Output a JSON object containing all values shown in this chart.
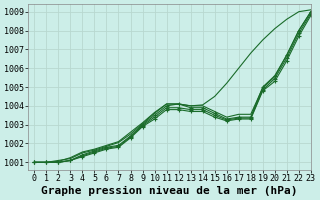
{
  "title": "Graphe pression niveau de la mer (hPa)",
  "background_color": "#cceee8",
  "grid_color": "#b8d8d0",
  "line_color": "#1a6b2a",
  "xlim": [
    -0.5,
    23
  ],
  "ylim": [
    1000.6,
    1009.4
  ],
  "yticks": [
    1001,
    1002,
    1003,
    1004,
    1005,
    1006,
    1007,
    1008,
    1009
  ],
  "xticks": [
    0,
    1,
    2,
    3,
    4,
    5,
    6,
    7,
    8,
    9,
    10,
    11,
    12,
    13,
    14,
    15,
    16,
    17,
    18,
    19,
    20,
    21,
    22,
    23
  ],
  "series": [
    {
      "y": [
        1001.0,
        1001.0,
        1001.0,
        1001.1,
        1001.4,
        1001.6,
        1001.8,
        1001.9,
        1002.4,
        1003.0,
        1003.5,
        1004.0,
        1004.1,
        1003.9,
        1003.9,
        1003.6,
        1003.3,
        1003.4,
        1003.4,
        1005.0,
        1005.6,
        1006.7,
        1008.0,
        1009.0
      ],
      "marker": true
    },
    {
      "y": [
        1001.0,
        1001.0,
        1001.0,
        1001.1,
        1001.3,
        1001.5,
        1001.7,
        1001.8,
        1002.3,
        1002.9,
        1003.3,
        1003.8,
        1003.8,
        1003.7,
        1003.7,
        1003.4,
        1003.2,
        1003.3,
        1003.3,
        1004.8,
        1005.3,
        1006.4,
        1007.7,
        1008.8
      ],
      "marker": true
    },
    {
      "y": [
        1001.0,
        1001.0,
        1001.0,
        1001.1,
        1001.35,
        1001.55,
        1001.75,
        1001.85,
        1002.35,
        1002.95,
        1003.4,
        1003.9,
        1003.9,
        1003.8,
        1003.8,
        1003.5,
        1003.25,
        1003.35,
        1003.35,
        1004.85,
        1005.45,
        1006.55,
        1007.85,
        1008.9
      ],
      "marker": true
    },
    {
      "y": [
        1001.0,
        1001.0,
        1001.1,
        1001.2,
        1001.5,
        1001.65,
        1001.85,
        1002.05,
        1002.5,
        1003.05,
        1003.6,
        1004.1,
        1004.1,
        1004.0,
        1004.0,
        1003.7,
        1003.4,
        1003.55,
        1003.55,
        1004.95,
        1005.55,
        1006.7,
        1008.0,
        1009.0
      ],
      "marker": false
    },
    {
      "y": [
        1001.0,
        1001.0,
        1001.05,
        1001.25,
        1001.55,
        1001.7,
        1001.9,
        1002.1,
        1002.6,
        1003.1,
        1003.65,
        1004.1,
        1004.1,
        1004.0,
        1004.05,
        1004.5,
        1005.2,
        1006.0,
        1006.8,
        1007.5,
        1008.1,
        1008.6,
        1009.0,
        1009.1
      ],
      "marker": false
    }
  ],
  "title_fontsize": 8,
  "tick_fontsize": 6
}
